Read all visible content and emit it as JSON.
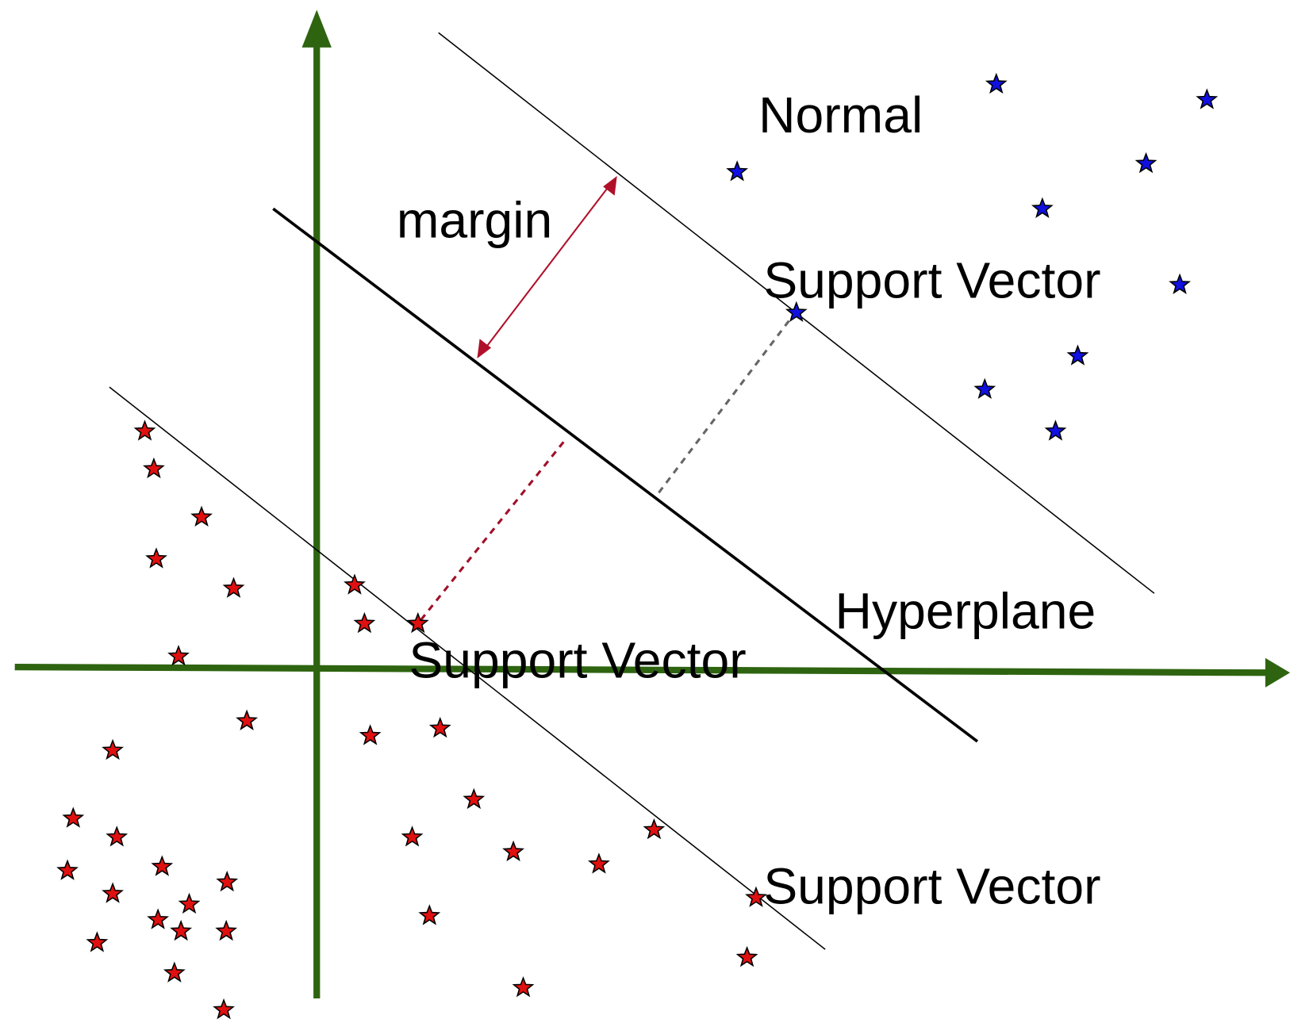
{
  "labels": {
    "normal": "Normal",
    "margin": "margin",
    "support_vector_top": "Support Vector",
    "support_vector_middle": "Support Vector",
    "support_vector_bottom": "Support Vector",
    "hyperplane": "Hyperplane"
  }
}
